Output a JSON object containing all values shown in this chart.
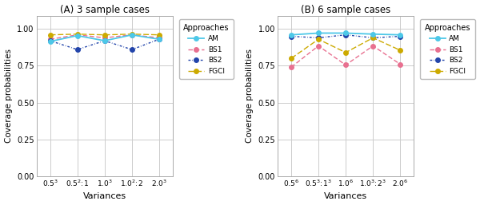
{
  "title_A": "(A) 3 sample cases",
  "title_B": "(B) 6 sample cases",
  "xlabel": "Variances",
  "ylabel": "Coverage probabilities",
  "xtick_labels_A": [
    "$0.5^3$",
    "$0.5^2\\!:\\!1$",
    "$1.0^3$",
    "$1.0^2\\!:\\!2$",
    "$2.0^3$"
  ],
  "xtick_labels_B": [
    "$0.5^6$",
    "$0.5^3\\!:\\!1^3$",
    "$1.0^6$",
    "$1.0^3\\!:\\!2^3$",
    "$2.0^6$"
  ],
  "ylim": [
    0.0,
    1.09
  ],
  "yticks": [
    0.0,
    0.25,
    0.5,
    0.75,
    1.0
  ],
  "legend_title": "Approaches",
  "series": {
    "AM": {
      "color": "#4DC8E8",
      "linestyle": "solid",
      "marker": "o",
      "values_A": [
        0.915,
        0.955,
        0.92,
        0.96,
        0.93
      ],
      "values_B": [
        0.96,
        0.972,
        0.972,
        0.965,
        0.96
      ]
    },
    "BS1": {
      "color": "#E87090",
      "linestyle": "dashed",
      "marker": "o",
      "values_A": [
        0.93,
        0.96,
        0.94,
        0.96,
        0.94
      ],
      "values_B": [
        0.74,
        0.885,
        0.755,
        0.885,
        0.76
      ]
    },
    "BS2": {
      "color": "#2244AA",
      "linestyle": "dashed",
      "marker": "o",
      "values_A": [
        0.92,
        0.86,
        0.92,
        0.86,
        0.93
      ],
      "values_B": [
        0.95,
        0.94,
        0.96,
        0.94,
        0.95
      ]
    },
    "FGCI": {
      "color": "#CCAA00",
      "linestyle": "dashed",
      "marker": "o",
      "values_A": [
        0.96,
        0.965,
        0.96,
        0.965,
        0.96
      ],
      "values_B": [
        0.8,
        0.93,
        0.84,
        0.94,
        0.855
      ]
    }
  },
  "background_color": "#FFFFFF",
  "panel_bg": "#FFFFFF",
  "grid_color": "#CCCCCC",
  "legend_entries": [
    "AM",
    "BS1",
    "BS2",
    "FGCI"
  ]
}
